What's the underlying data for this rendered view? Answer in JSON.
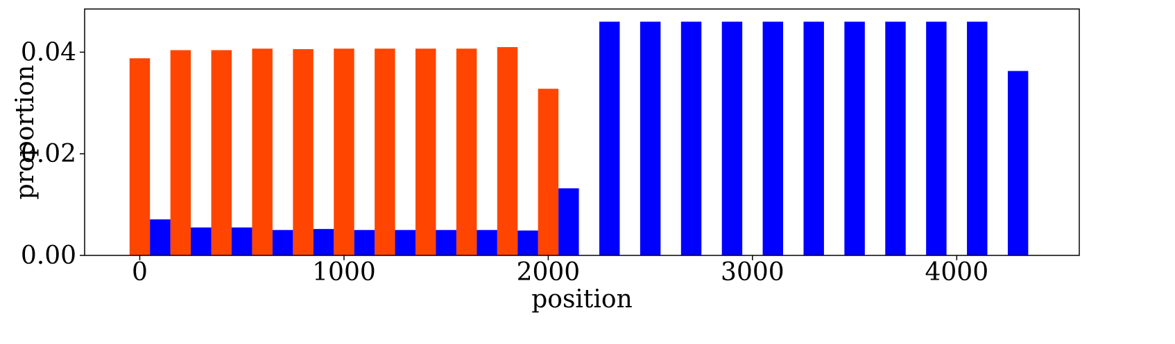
{
  "chart_data": {
    "type": "bar",
    "xlabel": "position",
    "ylabel": "proportion",
    "xlim": [
      -270,
      4600
    ],
    "ylim": [
      0,
      0.0485
    ],
    "bar_width": 100,
    "xticks": [
      {
        "value": 0,
        "label": "0"
      },
      {
        "value": 1000,
        "label": "1000"
      },
      {
        "value": 2000,
        "label": "2000"
      },
      {
        "value": 3000,
        "label": "3000"
      },
      {
        "value": 4000,
        "label": "4000"
      }
    ],
    "yticks": [
      {
        "value": 0,
        "label": "0.00"
      },
      {
        "value": 0.02,
        "label": "0.02"
      },
      {
        "value": 0.04,
        "label": "0.04"
      }
    ],
    "grid": false,
    "series": [
      {
        "color": "#ff4500",
        "points": [
          {
            "x": 0,
            "y": 0.0388
          },
          {
            "x": 200,
            "y": 0.0404
          },
          {
            "x": 400,
            "y": 0.0404
          },
          {
            "x": 600,
            "y": 0.0407
          },
          {
            "x": 800,
            "y": 0.0406
          },
          {
            "x": 1000,
            "y": 0.0407
          },
          {
            "x": 1200,
            "y": 0.0407
          },
          {
            "x": 1400,
            "y": 0.0407
          },
          {
            "x": 1600,
            "y": 0.0407
          },
          {
            "x": 1800,
            "y": 0.041
          },
          {
            "x": 2000,
            "y": 0.0328
          }
        ]
      },
      {
        "color": "#0000ff",
        "points": [
          {
            "x": 100,
            "y": 0.0071
          },
          {
            "x": 300,
            "y": 0.0055
          },
          {
            "x": 500,
            "y": 0.0055
          },
          {
            "x": 700,
            "y": 0.005
          },
          {
            "x": 900,
            "y": 0.0052
          },
          {
            "x": 1100,
            "y": 0.005
          },
          {
            "x": 1300,
            "y": 0.005
          },
          {
            "x": 1500,
            "y": 0.005
          },
          {
            "x": 1700,
            "y": 0.005
          },
          {
            "x": 1900,
            "y": 0.0049
          },
          {
            "x": 2100,
            "y": 0.0132
          },
          {
            "x": 2300,
            "y": 0.046
          },
          {
            "x": 2500,
            "y": 0.046
          },
          {
            "x": 2700,
            "y": 0.046
          },
          {
            "x": 2900,
            "y": 0.046
          },
          {
            "x": 3100,
            "y": 0.046
          },
          {
            "x": 3300,
            "y": 0.046
          },
          {
            "x": 3500,
            "y": 0.046
          },
          {
            "x": 3700,
            "y": 0.046
          },
          {
            "x": 3900,
            "y": 0.046
          },
          {
            "x": 4100,
            "y": 0.046
          },
          {
            "x": 4300,
            "y": 0.0363
          }
        ]
      }
    ]
  }
}
